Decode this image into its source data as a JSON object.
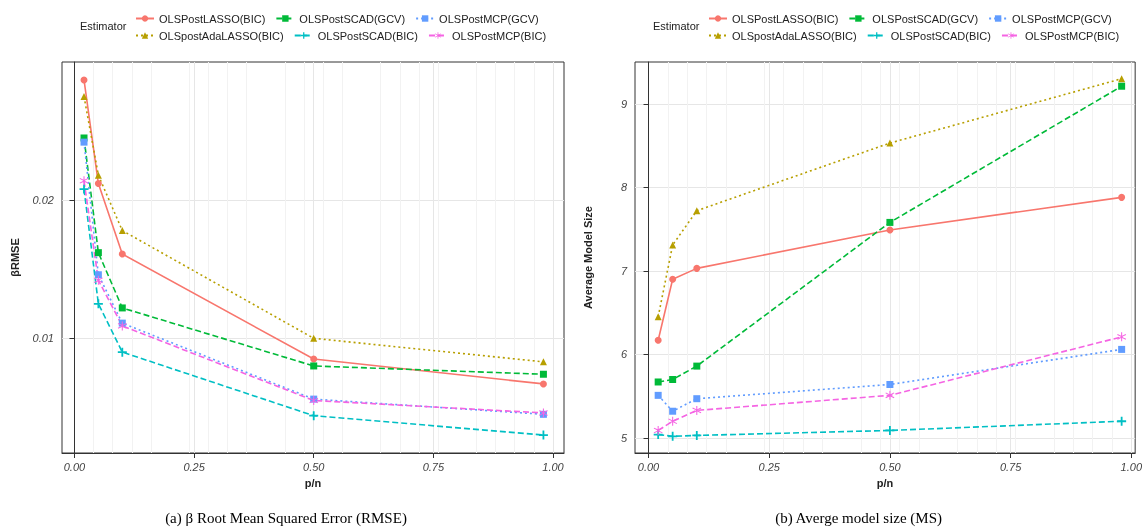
{
  "chart_data": [
    {
      "type": "line",
      "ylabel": "βRMSE",
      "xlabel": "p/n",
      "legend_title": "Estimator",
      "legend": "top",
      "grid": true,
      "annotations": [
        "(a) β Root Mean Squared Error (RMSE)"
      ],
      "x": [
        0.02,
        0.05,
        0.1,
        0.5,
        0.98
      ],
      "xlim": [
        -0.026,
        1.023
      ],
      "xticks": [
        {
          "value": 0,
          "label": "0.00"
        },
        {
          "value": 0.25,
          "label": "0.25"
        },
        {
          "value": 0.5,
          "label": "0.50"
        },
        {
          "value": 0.75,
          "label": "0.75"
        },
        {
          "value": 1,
          "label": "1.00"
        }
      ],
      "ylim": [
        0.0017,
        0.03
      ],
      "yticks": [
        0.01,
        0.02
      ],
      "series": [
        {
          "name": "OLSPostLASSO(BIC)",
          "color": "#f8766d",
          "marker": "circle",
          "line_style": "solid",
          "values": [
            0.0287,
            0.0212,
            0.0161,
            0.0085,
            0.0067
          ]
        },
        {
          "name": "OLSpostAdaLASSO(BIC)",
          "color": "#b79f00",
          "marker": "triangle",
          "line_style": "dotted",
          "values": [
            0.0275,
            0.0218,
            0.0178,
            0.01,
            0.0083
          ]
        },
        {
          "name": "OLSPostSCAD(GCV)",
          "color": "#00ba38",
          "marker": "square",
          "line_style": "dashed",
          "values": [
            0.0245,
            0.0162,
            0.0122,
            0.008,
            0.0074
          ]
        },
        {
          "name": "OLSPostSCAD(BIC)",
          "color": "#00bfc4",
          "marker": "cross",
          "line_style": "dashed",
          "values": [
            0.0208,
            0.0125,
            0.009,
            0.0044,
            0.003
          ]
        },
        {
          "name": "OLSPostMCP(GCV)",
          "color": "#619cff",
          "marker": "square",
          "line_style": "dotted",
          "values": [
            0.0242,
            0.0146,
            0.0111,
            0.0056,
            0.0045
          ]
        },
        {
          "name": "OLSPostMCP(BIC)",
          "color": "#f564e3",
          "marker": "star",
          "line_style": "dashed",
          "values": [
            0.0214,
            0.0142,
            0.0109,
            0.0055,
            0.0046
          ]
        }
      ]
    },
    {
      "type": "line",
      "ylabel": "Average Model Size",
      "xlabel": "p/n",
      "legend_title": "Estimator",
      "legend": "top",
      "grid": true,
      "annotations": [
        "(b) Averge model size (MS)"
      ],
      "x": [
        0.02,
        0.05,
        0.1,
        0.5,
        0.98
      ],
      "xlim": [
        -0.028,
        1.008
      ],
      "xticks": [
        {
          "value": 0,
          "label": "0.00"
        },
        {
          "value": 0.25,
          "label": "0.25"
        },
        {
          "value": 0.5,
          "label": "0.50"
        },
        {
          "value": 0.75,
          "label": "0.75"
        },
        {
          "value": 1,
          "label": "1.00"
        }
      ],
      "ylim": [
        4.82,
        9.5
      ],
      "yticks": [
        5,
        6,
        7,
        8,
        9
      ],
      "series": [
        {
          "name": "OLSPostLASSO(BIC)",
          "color": "#f8766d",
          "marker": "circle",
          "line_style": "solid",
          "values": [
            6.17,
            6.9,
            7.03,
            7.49,
            7.88
          ]
        },
        {
          "name": "OLSpostAdaLASSO(BIC)",
          "color": "#b79f00",
          "marker": "triangle",
          "line_style": "dotted",
          "values": [
            6.45,
            7.31,
            7.72,
            8.53,
            9.3
          ]
        },
        {
          "name": "OLSPostSCAD(GCV)",
          "color": "#00ba38",
          "marker": "square",
          "line_style": "dashed",
          "values": [
            5.67,
            5.7,
            5.86,
            7.58,
            9.21
          ]
        },
        {
          "name": "OLSPostSCAD(BIC)",
          "color": "#00bfc4",
          "marker": "cross",
          "line_style": "dashed",
          "values": [
            5.04,
            5.02,
            5.03,
            5.09,
            5.2
          ]
        },
        {
          "name": "OLSPostMCP(GCV)",
          "color": "#619cff",
          "marker": "square",
          "line_style": "dotted",
          "values": [
            5.51,
            5.32,
            5.47,
            5.64,
            6.06
          ]
        },
        {
          "name": "OLSPostMCP(BIC)",
          "color": "#f564e3",
          "marker": "star",
          "line_style": "dashed",
          "values": [
            5.09,
            5.2,
            5.33,
            5.51,
            6.21
          ]
        }
      ]
    }
  ]
}
